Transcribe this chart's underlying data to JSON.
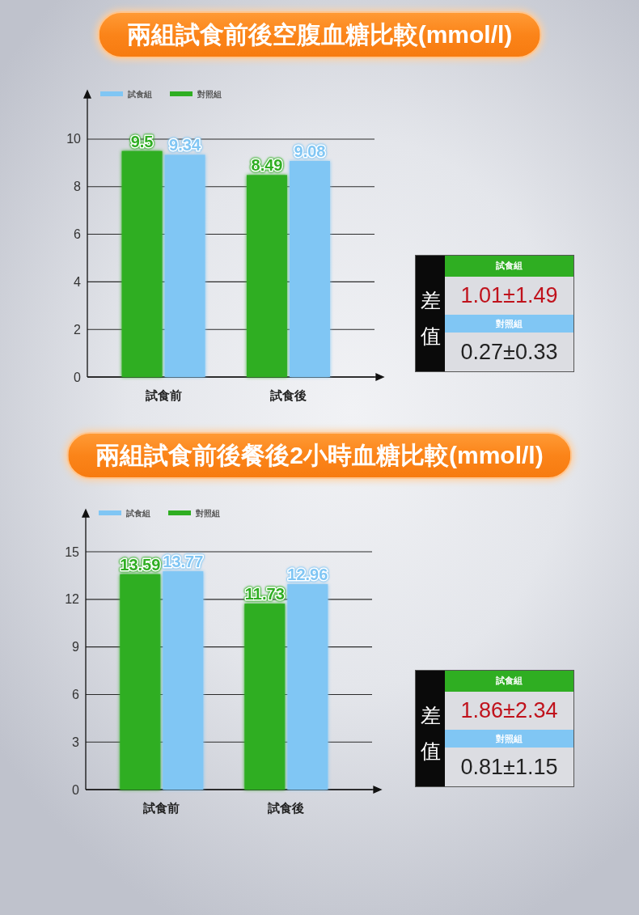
{
  "chart_data": [
    {
      "type": "bar",
      "title": "兩組試食前後空腹血糖比較(mmol/l)",
      "categories": [
        "試食前",
        "試食後"
      ],
      "series": [
        {
          "name": "對照組",
          "color": "#2fae22",
          "values": [
            9.5,
            8.49
          ]
        },
        {
          "name": "試食組",
          "color": "#80c6f4",
          "values": [
            9.34,
            9.08
          ]
        }
      ],
      "ylim": [
        0,
        11.8
      ],
      "yticks": [
        0,
        2,
        4,
        6,
        8,
        10
      ],
      "grid": "y",
      "legend": "top left",
      "data_labels": true
    },
    {
      "type": "other",
      "title": "差值",
      "annotations": [
        "試食組",
        "1.01±1.49",
        "對照組",
        "0.27±0.33"
      ]
    },
    {
      "type": "bar",
      "title": "兩組試食前後餐後2小時血糖比較(mmol/l)",
      "categories": [
        "試食前",
        "試食後"
      ],
      "series": [
        {
          "name": "對照組",
          "color": "#2fae22",
          "values": [
            13.59,
            11.73
          ]
        },
        {
          "name": "試食組",
          "color": "#80c6f4",
          "values": [
            13.77,
            12.96
          ]
        }
      ],
      "ylim": [
        0,
        17.3
      ],
      "yticks": [
        0,
        3,
        6,
        9,
        12,
        15
      ],
      "grid": "y",
      "legend": "top left",
      "data_labels": true
    },
    {
      "type": "other",
      "title": "差值",
      "annotations": [
        "試食組",
        "1.86±2.34",
        "對照組",
        "0.81±1.15"
      ]
    }
  ]
}
